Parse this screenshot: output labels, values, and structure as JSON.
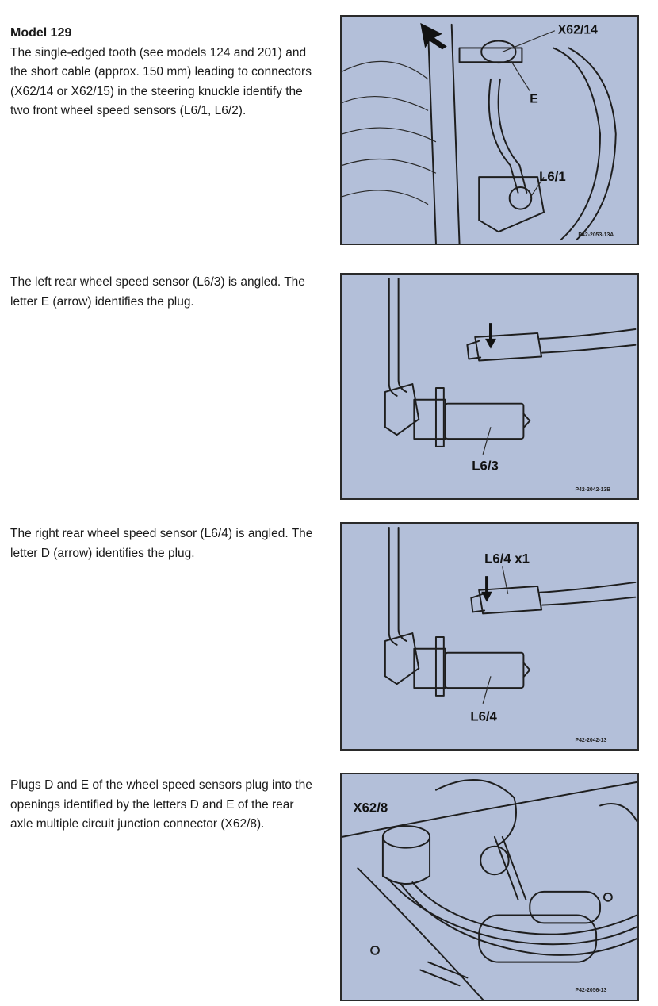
{
  "sections": [
    {
      "heading": "Model 129",
      "text": "The single-edged tooth (see models 124 and 201) and the short cable (approx. 150 mm) leading to connectors (X62/14 or X62/15) in the steering knuckle identify the two front wheel speed sensors (L6/1, L6/2).",
      "figure": {
        "labels": [
          "X62/14",
          "E",
          "L6/1"
        ],
        "code": "P42-2053-13A"
      }
    },
    {
      "text": "The left rear wheel speed sensor (L6/3) is angled. The letter E (arrow) identifies the plug.",
      "figure": {
        "labels": [
          "L6/3"
        ],
        "code": "P42-2042-13B"
      }
    },
    {
      "text": "The right rear wheel speed sensor (L6/4) is angled. The letter D (arrow) identifies the plug.",
      "figure": {
        "labels": [
          "L6/4 x1",
          "L6/4"
        ],
        "code": "P42-2042-13"
      }
    },
    {
      "text": "Plugs D and E of the wheel speed sensors plug into the openings identified by the letters D and E of the rear axle multiple circuit junction connector (X62/8).",
      "figure": {
        "labels": [
          "X62/8"
        ],
        "code": "P42-2056-13"
      }
    }
  ]
}
